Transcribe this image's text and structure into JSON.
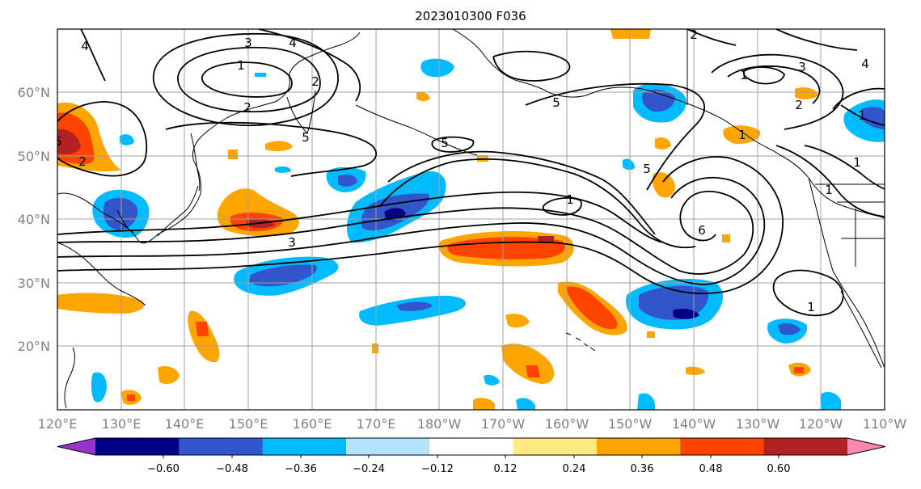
{
  "title": "2023010300 F036",
  "map": {
    "lat_labels": [
      "60°N",
      "50°N",
      "40°N",
      "30°N",
      "20°N"
    ],
    "lon_labels": [
      "120°E",
      "130°E",
      "140°E",
      "150°E",
      "160°E",
      "170°E",
      "180°W",
      "170°W",
      "160°W",
      "150°W",
      "140°W",
      "130°W",
      "120°W",
      "110°W"
    ],
    "contour_labels": [
      "4",
      "3",
      "4",
      "1",
      "2",
      "5",
      "2",
      "5",
      "3",
      "1",
      "5",
      "5",
      "6",
      "1",
      "2",
      "1",
      "3",
      "4",
      "2",
      "1",
      "1",
      "1",
      "1",
      "2",
      "5"
    ]
  },
  "colorbar": {
    "tick_labels": [
      "−0.60",
      "−0.48",
      "−0.36",
      "−0.24",
      "−0.12",
      "0.12",
      "0.24",
      "0.36",
      "0.48",
      "0.60"
    ],
    "colors": [
      "#9933cc",
      "#000088",
      "#3355cc",
      "#00bbff",
      "#b3e3ff",
      "#ffffff",
      "#ffea80",
      "#ffa500",
      "#ff4400",
      "#b22222",
      "#ff88aa"
    ]
  },
  "colors": {
    "land_outline": "#000000",
    "grid": "#a0a0a0",
    "axis_label": "#808080"
  }
}
